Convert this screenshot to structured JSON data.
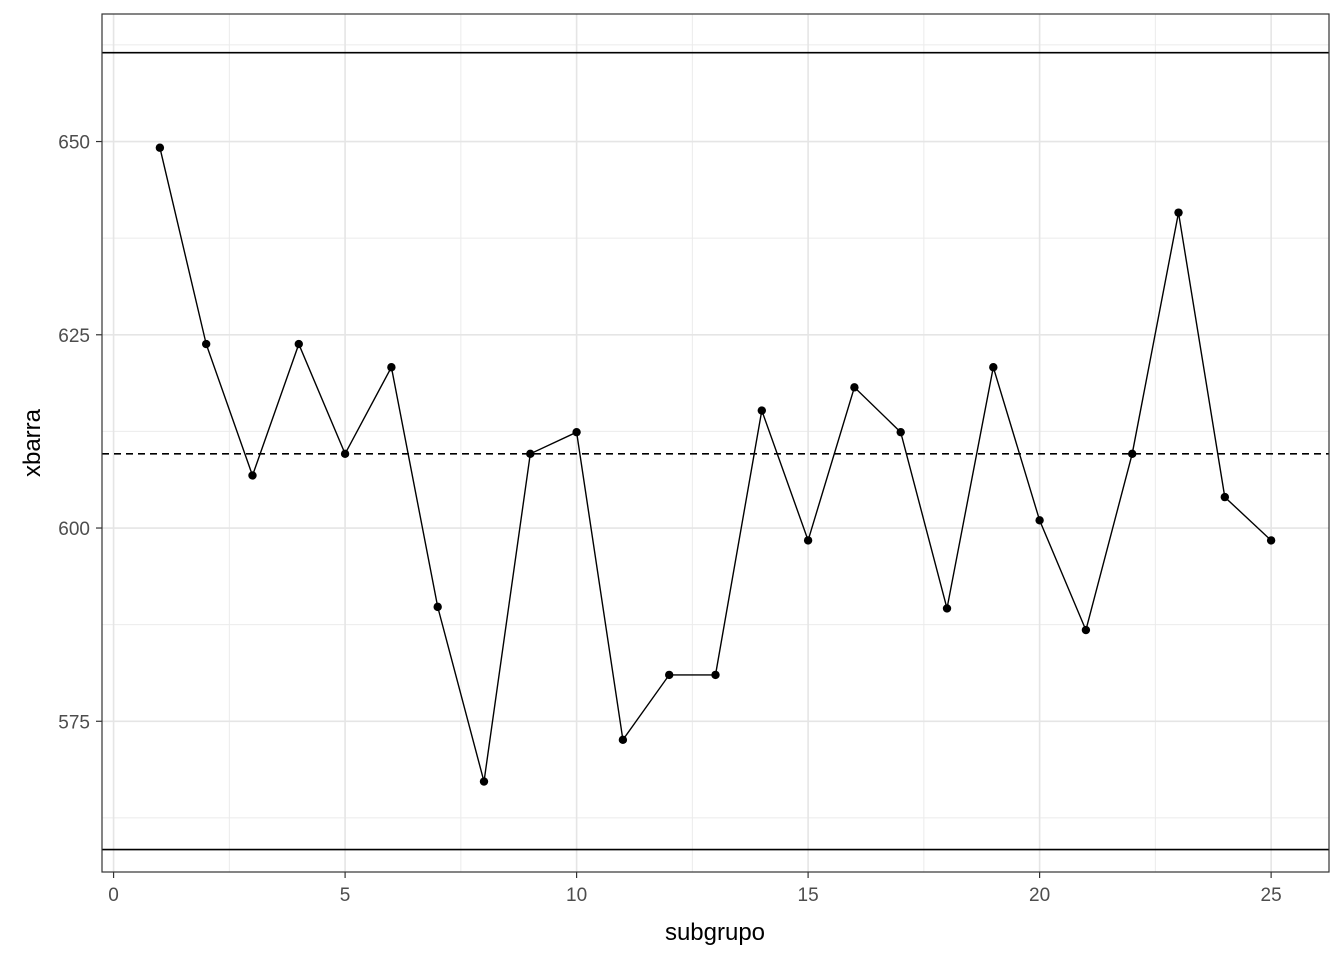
{
  "chart_data": {
    "type": "line",
    "xlabel": "subgrupo",
    "ylabel": "xbarra",
    "xlim": [
      -0.25,
      26.25
    ],
    "ylim": [
      555.5,
      666.5
    ],
    "x_ticks": [
      0,
      5,
      10,
      15,
      20,
      25
    ],
    "y_ticks": [
      575,
      600,
      625,
      650
    ],
    "grid": true,
    "series": [
      {
        "x": [
          1,
          2,
          3,
          4,
          5,
          6,
          7,
          8,
          9,
          10,
          11,
          12,
          13,
          14,
          15,
          16,
          17,
          18,
          19,
          20,
          21,
          22,
          23,
          24,
          25
        ],
        "values": [
          649.2,
          623.8,
          606.8,
          623.8,
          609.6,
          620.8,
          589.8,
          567.2,
          609.6,
          612.4,
          572.6,
          581.0,
          581.0,
          615.2,
          598.4,
          618.2,
          612.4,
          589.6,
          620.8,
          601.0,
          586.8,
          609.6,
          640.8,
          604.0,
          598.4
        ]
      }
    ],
    "center_line": 609.6,
    "control_limits": [
      558.4,
      661.5
    ]
  }
}
